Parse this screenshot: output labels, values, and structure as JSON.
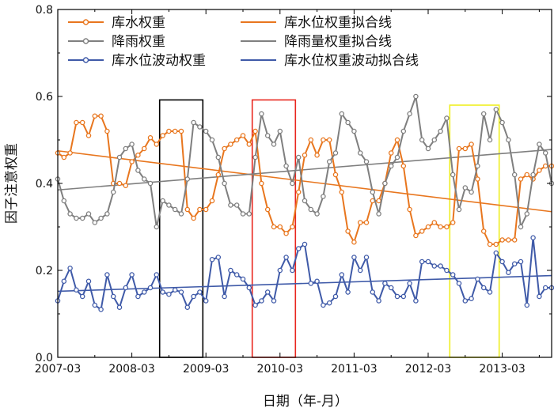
{
  "chart_data": {
    "type": "line",
    "xlabel": "日期（年-月）",
    "ylabel": "因子注意权重",
    "ylim": [
      0.0,
      0.8
    ],
    "yticks": [
      "0.0",
      "0.2",
      "0.4",
      "0.6",
      "0.8"
    ],
    "xlim": [
      0,
      80
    ],
    "xticks": [
      {
        "x": 0,
        "label": "2007-03"
      },
      {
        "x": 12,
        "label": "2008-03"
      },
      {
        "x": 24,
        "label": "2009-03"
      },
      {
        "x": 36,
        "label": "2010-03"
      },
      {
        "x": 48,
        "label": "2011-03"
      },
      {
        "x": 60,
        "label": "2012-03"
      },
      {
        "x": 72,
        "label": "2013-03"
      }
    ],
    "grid": false,
    "legend_placement": "top",
    "series": [
      {
        "name": "库水权重",
        "color": "#E8761E",
        "marker": true,
        "values": [
          0.47,
          0.46,
          0.47,
          0.54,
          0.54,
          0.51,
          0.555,
          0.555,
          0.52,
          0.4,
          0.4,
          0.395,
          0.45,
          0.465,
          0.48,
          0.505,
          0.49,
          0.51,
          0.52,
          0.52,
          0.52,
          0.34,
          0.32,
          0.34,
          0.34,
          0.36,
          0.42,
          0.48,
          0.49,
          0.5,
          0.51,
          0.49,
          0.52,
          0.4,
          0.34,
          0.3,
          0.3,
          0.285,
          0.3,
          0.38,
          0.465,
          0.5,
          0.465,
          0.5,
          0.5,
          0.42,
          0.38,
          0.29,
          0.265,
          0.31,
          0.31,
          0.36,
          0.36,
          0.4,
          0.47,
          0.5,
          0.44,
          0.34,
          0.28,
          0.29,
          0.3,
          0.31,
          0.3,
          0.3,
          0.31,
          0.48,
          0.48,
          0.49,
          0.41,
          0.29,
          0.26,
          0.26,
          0.27,
          0.27,
          0.27,
          0.41,
          0.42,
          0.41,
          0.43,
          0.44,
          0.44
        ]
      },
      {
        "name": "降雨权重",
        "color": "#7F7F7F",
        "marker": true,
        "values": [
          0.41,
          0.36,
          0.33,
          0.32,
          0.32,
          0.33,
          0.31,
          0.32,
          0.33,
          0.38,
          0.46,
          0.48,
          0.49,
          0.43,
          0.41,
          0.4,
          0.3,
          0.36,
          0.35,
          0.34,
          0.33,
          0.41,
          0.54,
          0.53,
          0.52,
          0.5,
          0.46,
          0.4,
          0.35,
          0.35,
          0.33,
          0.33,
          0.46,
          0.56,
          0.51,
          0.49,
          0.52,
          0.44,
          0.4,
          0.46,
          0.36,
          0.34,
          0.33,
          0.37,
          0.45,
          0.47,
          0.56,
          0.54,
          0.52,
          0.47,
          0.45,
          0.38,
          0.33,
          0.4,
          0.44,
          0.46,
          0.52,
          0.56,
          0.6,
          0.5,
          0.48,
          0.5,
          0.52,
          0.55,
          0.42,
          0.34,
          0.39,
          0.38,
          0.44,
          0.56,
          0.5,
          0.57,
          0.54,
          0.5,
          0.42,
          0.3,
          0.33,
          0.42,
          0.49,
          0.47,
          0.4
        ]
      },
      {
        "name": "库水位波动权重",
        "color": "#3F5AA8",
        "marker": true,
        "values": [
          0.13,
          0.175,
          0.205,
          0.155,
          0.14,
          0.175,
          0.12,
          0.11,
          0.19,
          0.14,
          0.115,
          0.16,
          0.19,
          0.14,
          0.15,
          0.16,
          0.19,
          0.15,
          0.145,
          0.155,
          0.15,
          0.115,
          0.14,
          0.15,
          0.13,
          0.225,
          0.23,
          0.14,
          0.2,
          0.19,
          0.18,
          0.16,
          0.12,
          0.13,
          0.15,
          0.13,
          0.2,
          0.23,
          0.2,
          0.25,
          0.26,
          0.17,
          0.175,
          0.12,
          0.125,
          0.14,
          0.19,
          0.15,
          0.23,
          0.2,
          0.23,
          0.15,
          0.13,
          0.17,
          0.16,
          0.14,
          0.14,
          0.17,
          0.13,
          0.22,
          0.22,
          0.21,
          0.21,
          0.2,
          0.19,
          0.17,
          0.13,
          0.135,
          0.18,
          0.16,
          0.15,
          0.24,
          0.22,
          0.195,
          0.215,
          0.22,
          0.12,
          0.275,
          0.14,
          0.16,
          0.16
        ]
      },
      {
        "name": "库水位权重拟合线",
        "color": "#E8761E",
        "marker": false,
        "x": [
          0,
          80
        ],
        "values": [
          0.475,
          0.335
        ]
      },
      {
        "name": "降雨量权重拟合线",
        "color": "#7F7F7F",
        "marker": false,
        "x": [
          0,
          80
        ],
        "values": [
          0.385,
          0.478
        ]
      },
      {
        "name": "库水位权重波动拟合线",
        "color": "#3F5AA8",
        "marker": false,
        "x": [
          0,
          80
        ],
        "values": [
          0.152,
          0.188
        ]
      }
    ],
    "highlights": [
      {
        "color": "#000000",
        "x0": 16.5,
        "x1": 23.5,
        "y0": 0.0,
        "y1": 0.592
      },
      {
        "color": "#E8261E",
        "x0": 31.5,
        "x1": 38.5,
        "y0": 0.0,
        "y1": 0.592
      },
      {
        "color": "#EEEE22",
        "x0": 63.5,
        "x1": 71.5,
        "y0": 0.0,
        "y1": 0.58
      }
    ]
  }
}
